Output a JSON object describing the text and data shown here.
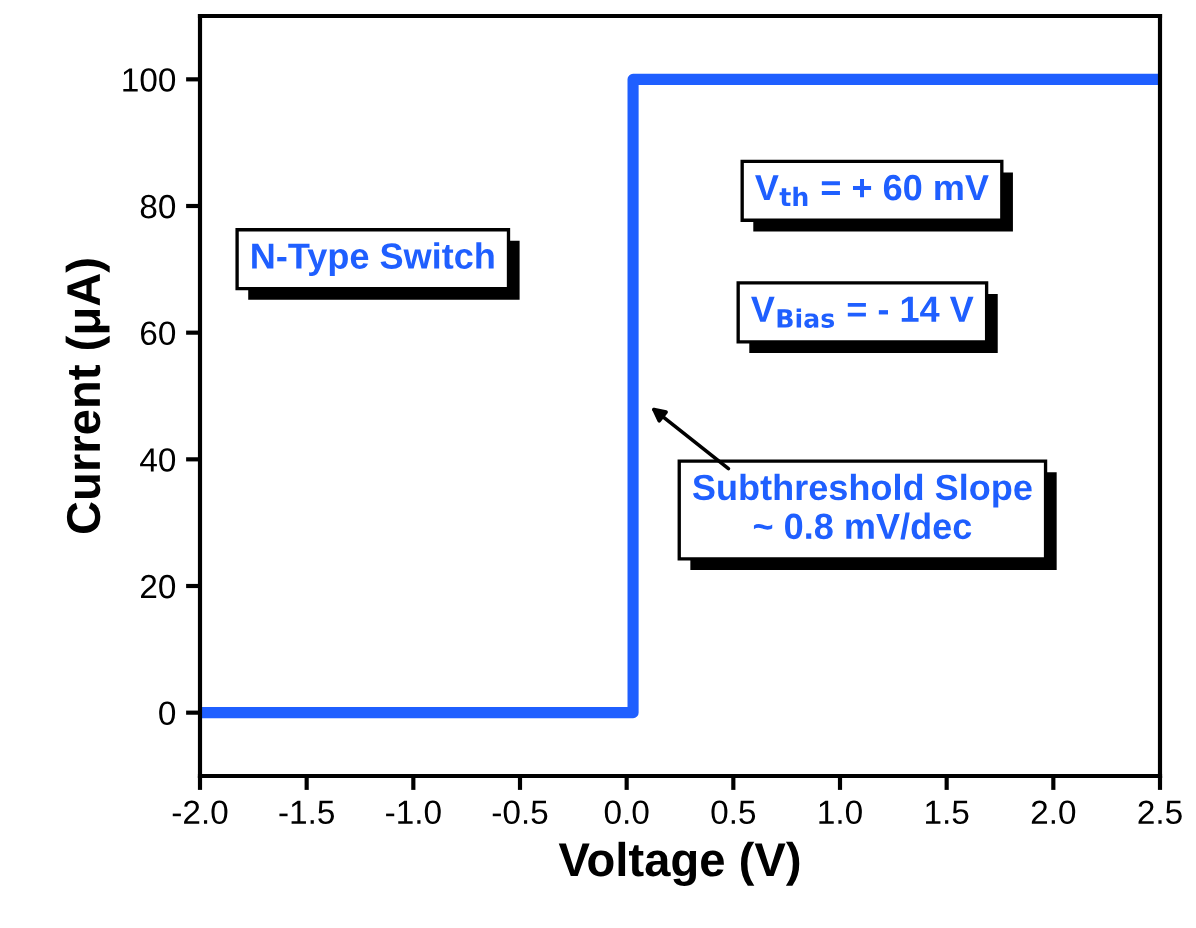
{
  "chart_data": {
    "type": "line",
    "xlabel": "Voltage (V)",
    "ylabel": "Current (μA)",
    "x": [
      -2.0,
      0.03,
      0.03,
      2.5
    ],
    "series": [
      {
        "color": "#1f5fff",
        "values": [
          0,
          0,
          100,
          100
        ]
      }
    ],
    "xlim": [
      -2.0,
      2.5
    ],
    "xticks": [
      {
        "value": -2.0,
        "label": "-2.0"
      },
      {
        "value": -1.5,
        "label": "-1.5"
      },
      {
        "value": -1.0,
        "label": "-1.0"
      },
      {
        "value": -0.5,
        "label": "-0.5"
      },
      {
        "value": 0.0,
        "label": "0.0"
      },
      {
        "value": 0.5,
        "label": "0.5"
      },
      {
        "value": 1.0,
        "label": "1.0"
      },
      {
        "value": 1.5,
        "label": "1.5"
      },
      {
        "value": 2.0,
        "label": "2.0"
      },
      {
        "value": 2.5,
        "label": "2.5"
      }
    ],
    "ylim": [
      -10,
      110
    ],
    "yticks": [
      0,
      20,
      40,
      60,
      80,
      100
    ],
    "grid": false,
    "legend": false,
    "marker": "none",
    "line_style": "solid",
    "annotations": [
      "N-Type Switch",
      "V$_{th}$ = + 60 mV",
      "V$_{Bias}$ = - 14 V",
      "Subthreshold Slope\n~ 0.8 mV/dec"
    ]
  }
}
